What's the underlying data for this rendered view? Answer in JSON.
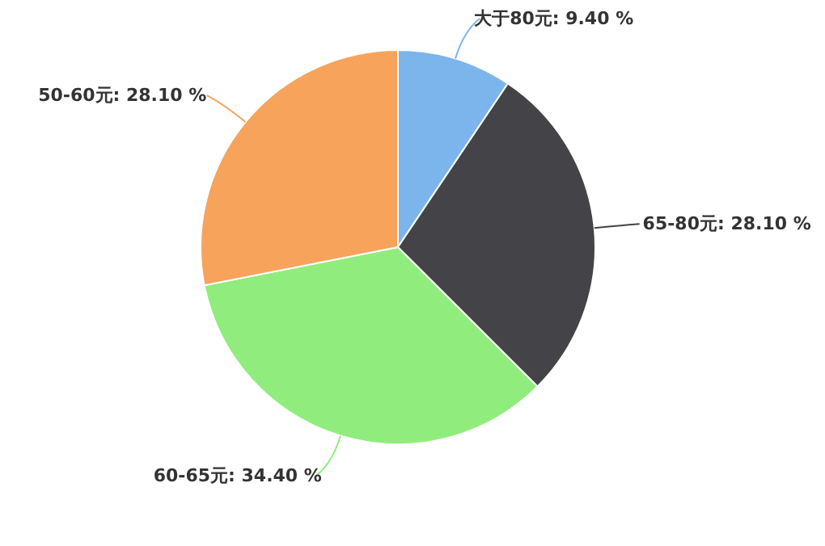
{
  "chart_data": {
    "type": "pie",
    "categories": [
      "大于80元",
      "65-80元",
      "60-65元",
      "50-60元"
    ],
    "values": [
      9.4,
      28.1,
      34.4,
      28.1
    ],
    "value_labels": [
      "9.40 %",
      "28.10 %",
      "34.40 %",
      "28.10 %"
    ],
    "colors": [
      "#7cb5ec",
      "#434348",
      "#90ed7d",
      "#f7a35c"
    ]
  }
}
